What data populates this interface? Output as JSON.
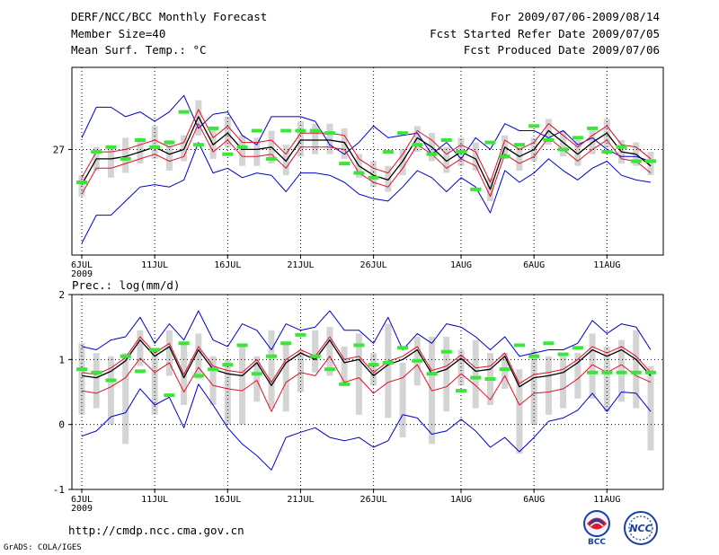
{
  "header": {
    "title": "DERF/NCC/BCC Monthly Forecast",
    "member_size": "Member Size=40",
    "variable": "Mean Surf. Temp.: °C",
    "forecast_period": "For 2009/07/06-2009/08/14",
    "start_date": "Fcst Started Refer Date 2009/07/05",
    "produced_date": "Fcst Produced Date 2009/07/06"
  },
  "footer": {
    "url": "http://cmdp.ncc.cma.gov.cn",
    "credit": "GrADS: COLA/IGES",
    "logos": [
      {
        "name": "bcc-logo",
        "text": "BCC"
      },
      {
        "name": "ncc-logo",
        "text": "NCC"
      }
    ]
  },
  "colors": {
    "ensemble_mean": "#000000",
    "spread_band": "#e0102a",
    "extremes": "#0000cc",
    "member_bar": "#d4d4d4",
    "observed_marker": "#39e639"
  },
  "chart_data": [
    {
      "type": "line",
      "title": "Mean Surf. Temp.: °C",
      "xlabel": "",
      "ylabel": "",
      "x_tick_labels": [
        "6JUL",
        "11JUL",
        "16JUL",
        "21JUL",
        "26JUL",
        "1AUG",
        "6AUG",
        "11AUG"
      ],
      "x_year_label": "2009",
      "x_tick_days": [
        0,
        5,
        10,
        15,
        20,
        26,
        31,
        36
      ],
      "x_count": 40,
      "y_ticks": [
        27
      ],
      "ylim": [
        22.5,
        30.5
      ],
      "series": [
        {
          "name": "ensemble_mean",
          "values": [
            25.5,
            26.6,
            26.6,
            26.7,
            26.9,
            27.1,
            26.8,
            27.0,
            28.4,
            27.2,
            27.7,
            27.0,
            27.0,
            27.1,
            26.5,
            27.4,
            27.4,
            27.4,
            27.3,
            26.3,
            25.9,
            25.7,
            26.5,
            27.5,
            27.1,
            26.5,
            26.9,
            26.6,
            25.3,
            27.1,
            26.7,
            27.0,
            27.8,
            27.3,
            26.8,
            27.3,
            27.7,
            26.9,
            26.8,
            26.3
          ]
        },
        {
          "name": "spread_upper",
          "values": [
            25.8,
            26.9,
            26.9,
            27.0,
            27.2,
            27.4,
            27.1,
            27.3,
            28.7,
            27.5,
            28.0,
            27.3,
            27.3,
            27.4,
            26.8,
            27.7,
            27.7,
            27.7,
            27.6,
            26.6,
            26.2,
            26.0,
            26.8,
            27.8,
            27.4,
            26.8,
            27.2,
            26.9,
            25.6,
            27.4,
            27.0,
            27.3,
            28.1,
            27.6,
            27.1,
            27.6,
            28.0,
            27.2,
            27.1,
            26.6
          ]
        },
        {
          "name": "spread_lower",
          "values": [
            25.1,
            26.2,
            26.2,
            26.4,
            26.6,
            26.8,
            26.5,
            26.7,
            28.1,
            26.9,
            27.4,
            26.7,
            26.7,
            26.8,
            26.2,
            27.1,
            27.1,
            27.1,
            27.0,
            26.0,
            25.6,
            25.4,
            26.2,
            27.2,
            26.8,
            26.2,
            26.6,
            26.3,
            25.0,
            26.8,
            26.4,
            26.7,
            27.5,
            27.0,
            26.5,
            27.0,
            27.4,
            26.6,
            26.5,
            26.0
          ]
        },
        {
          "name": "ensemble_max",
          "values": [
            27.5,
            28.8,
            28.8,
            28.4,
            28.6,
            28.2,
            28.6,
            29.3,
            27.9,
            28.5,
            28.6,
            27.6,
            27.2,
            28.4,
            28.4,
            28.4,
            28.2,
            27.2,
            26.8,
            27.3,
            28.0,
            27.5,
            27.6,
            27.7,
            26.8,
            27.3,
            26.6,
            27.5,
            27.0,
            28.1,
            27.8,
            27.8,
            27.5,
            27.8,
            27.2,
            27.5,
            27.0,
            26.7,
            26.7,
            26.5
          ]
        },
        {
          "name": "ensemble_min",
          "values": [
            23.0,
            24.2,
            24.2,
            24.8,
            25.4,
            25.5,
            25.4,
            25.7,
            27.3,
            26.0,
            26.2,
            25.8,
            26.0,
            25.9,
            25.2,
            26.0,
            26.0,
            25.9,
            25.6,
            25.1,
            24.9,
            24.8,
            25.4,
            26.1,
            25.8,
            25.2,
            25.8,
            25.4,
            24.3,
            26.1,
            25.6,
            26.0,
            26.6,
            26.1,
            25.7,
            26.2,
            26.5,
            25.9,
            25.7,
            25.6
          ]
        },
        {
          "name": "member_bar_top",
          "values": [
            25.9,
            27.1,
            27.1,
            27.5,
            27.5,
            28.0,
            27.4,
            27.6,
            29.1,
            27.9,
            28.4,
            27.6,
            27.5,
            27.8,
            27.2,
            28.2,
            28.1,
            28.1,
            27.9,
            26.8,
            26.5,
            26.3,
            27.0,
            28.0,
            27.7,
            27.1,
            27.5,
            27.3,
            25.8,
            27.6,
            27.1,
            27.5,
            28.3,
            27.8,
            27.4,
            27.8,
            28.3,
            27.4,
            27.3,
            26.9
          ]
        },
        {
          "name": "member_bar_bottom",
          "values": [
            25.0,
            26.1,
            25.8,
            26.0,
            26.4,
            26.6,
            26.1,
            26.5,
            27.6,
            26.6,
            27.1,
            26.3,
            26.3,
            26.4,
            25.9,
            26.7,
            26.8,
            26.8,
            26.6,
            25.8,
            25.4,
            25.2,
            25.9,
            26.9,
            26.5,
            26.0,
            26.3,
            26.1,
            24.8,
            26.6,
            26.1,
            26.5,
            27.2,
            26.7,
            26.3,
            26.8,
            27.1,
            26.4,
            26.3,
            25.9
          ]
        },
        {
          "name": "observed",
          "values": [
            25.6,
            26.9,
            27.1,
            26.6,
            27.4,
            27.1,
            27.3,
            28.6,
            27.2,
            27.9,
            26.8,
            27.1,
            27.8,
            26.6,
            27.8,
            27.8,
            27.8,
            27.7,
            26.4,
            26.0,
            25.8,
            26.9,
            27.7,
            27.2,
            26.8,
            27.4,
            26.9,
            25.3,
            27.3,
            26.7,
            27.2,
            28.0,
            27.4,
            27.0,
            27.5,
            27.9,
            26.9,
            27.1,
            26.5,
            26.5
          ]
        }
      ]
    },
    {
      "type": "line",
      "title": "Prec.: log(mm/d)",
      "xlabel": "",
      "ylabel": "",
      "x_tick_labels": [
        "6JUL",
        "11JUL",
        "16JUL",
        "21JUL",
        "26JUL",
        "1AUG",
        "6AUG",
        "11AUG"
      ],
      "x_year_label": "2009",
      "x_tick_days": [
        0,
        5,
        10,
        15,
        20,
        26,
        31,
        36
      ],
      "x_count": 40,
      "y_ticks": [
        -1,
        0,
        1,
        2
      ],
      "ylim": [
        -1,
        2
      ],
      "series": [
        {
          "name": "ensemble_mean",
          "values": [
            0.75,
            0.72,
            0.82,
            0.98,
            1.3,
            1.05,
            1.2,
            0.72,
            1.15,
            0.85,
            0.78,
            0.75,
            0.95,
            0.6,
            0.95,
            1.1,
            1.0,
            1.3,
            0.95,
            1.0,
            0.75,
            0.92,
            1.0,
            1.15,
            0.78,
            0.85,
            1.02,
            0.82,
            0.85,
            1.05,
            0.58,
            0.72,
            0.75,
            0.8,
            0.95,
            1.15,
            1.05,
            1.15,
            1.0,
            0.75
          ]
        },
        {
          "name": "spread_upper",
          "values": [
            0.8,
            0.77,
            0.87,
            1.03,
            1.35,
            1.1,
            1.25,
            0.77,
            1.2,
            0.9,
            0.83,
            0.8,
            1.0,
            0.65,
            1.0,
            1.15,
            1.05,
            1.35,
            1.0,
            1.05,
            0.8,
            0.97,
            1.05,
            1.2,
            0.83,
            0.9,
            1.07,
            0.87,
            0.9,
            1.1,
            0.63,
            0.77,
            0.8,
            0.85,
            1.0,
            1.2,
            1.1,
            1.2,
            1.05,
            0.8
          ]
        },
        {
          "name": "spread_lower",
          "values": [
            0.52,
            0.48,
            0.58,
            0.72,
            1.02,
            0.8,
            0.95,
            0.5,
            0.88,
            0.6,
            0.55,
            0.52,
            0.68,
            0.2,
            0.65,
            0.8,
            0.75,
            1.05,
            0.65,
            0.72,
            0.48,
            0.65,
            0.72,
            0.92,
            0.52,
            0.58,
            0.78,
            0.6,
            0.38,
            0.75,
            0.3,
            0.48,
            0.5,
            0.55,
            0.7,
            0.92,
            0.8,
            0.92,
            0.75,
            0.65
          ]
        },
        {
          "name": "ensemble_max",
          "values": [
            1.2,
            1.15,
            1.3,
            1.35,
            1.65,
            1.25,
            1.55,
            1.3,
            1.75,
            1.3,
            1.2,
            1.55,
            1.45,
            1.15,
            1.55,
            1.45,
            1.5,
            1.75,
            1.45,
            1.45,
            1.25,
            1.65,
            1.15,
            1.4,
            1.25,
            1.55,
            1.5,
            1.35,
            1.15,
            1.35,
            1.05,
            1.1,
            1.15,
            1.15,
            1.25,
            1.6,
            1.4,
            1.55,
            1.5,
            1.15
          ]
        },
        {
          "name": "ensemble_min",
          "values": [
            -0.18,
            -0.1,
            0.12,
            0.18,
            0.55,
            0.3,
            0.42,
            -0.05,
            0.62,
            0.3,
            -0.05,
            -0.3,
            -0.48,
            -0.7,
            -0.2,
            -0.12,
            -0.05,
            -0.2,
            -0.25,
            -0.2,
            -0.35,
            -0.25,
            0.15,
            0.1,
            -0.15,
            -0.1,
            0.08,
            -0.1,
            -0.35,
            -0.2,
            -0.42,
            -0.2,
            0.05,
            0.1,
            0.22,
            0.48,
            0.2,
            0.5,
            0.48,
            0.2
          ]
        },
        {
          "name": "member_bar_top",
          "values": [
            1.25,
            1.1,
            1.05,
            1.1,
            1.45,
            1.15,
            1.45,
            1.25,
            1.4,
            1.05,
            1.0,
            1.2,
            1.05,
            1.45,
            1.25,
            1.15,
            1.45,
            1.5,
            1.2,
            1.4,
            1.1,
            1.55,
            0.95,
            1.35,
            1.35,
            1.35,
            1.15,
            1.3,
            1.1,
            1.1,
            0.85,
            1.15,
            1.05,
            1.05,
            1.1,
            1.4,
            1.2,
            1.3,
            1.45,
            0.9
          ]
        },
        {
          "name": "member_bar_bottom",
          "values": [
            0.15,
            0.25,
            0.0,
            -0.3,
            0.9,
            0.15,
            0.75,
            0.3,
            0.7,
            0.3,
            0.0,
            0.0,
            0.35,
            0.25,
            0.2,
            0.5,
            0.8,
            0.75,
            0.6,
            0.15,
            0.6,
            0.1,
            -0.2,
            0.6,
            -0.3,
            0.2,
            0.6,
            0.25,
            0.3,
            0.55,
            -0.45,
            0.0,
            0.15,
            0.25,
            0.4,
            0.4,
            0.2,
            0.35,
            0.25,
            -0.4
          ]
        },
        {
          "name": "observed",
          "values": [
            0.85,
            0.8,
            0.68,
            1.05,
            0.82,
            1.15,
            0.45,
            1.25,
            0.75,
            0.85,
            0.92,
            1.22,
            0.78,
            1.05,
            1.25,
            1.38,
            1.05,
            0.85,
            0.62,
            1.22,
            0.92,
            0.95,
            1.18,
            0.98,
            0.78,
            1.12,
            0.52,
            0.72,
            0.7,
            0.85,
            1.22,
            1.05,
            1.25,
            1.08,
            1.18,
            0.8,
            0.8,
            0.8,
            0.8,
            0.8
          ]
        }
      ]
    }
  ]
}
